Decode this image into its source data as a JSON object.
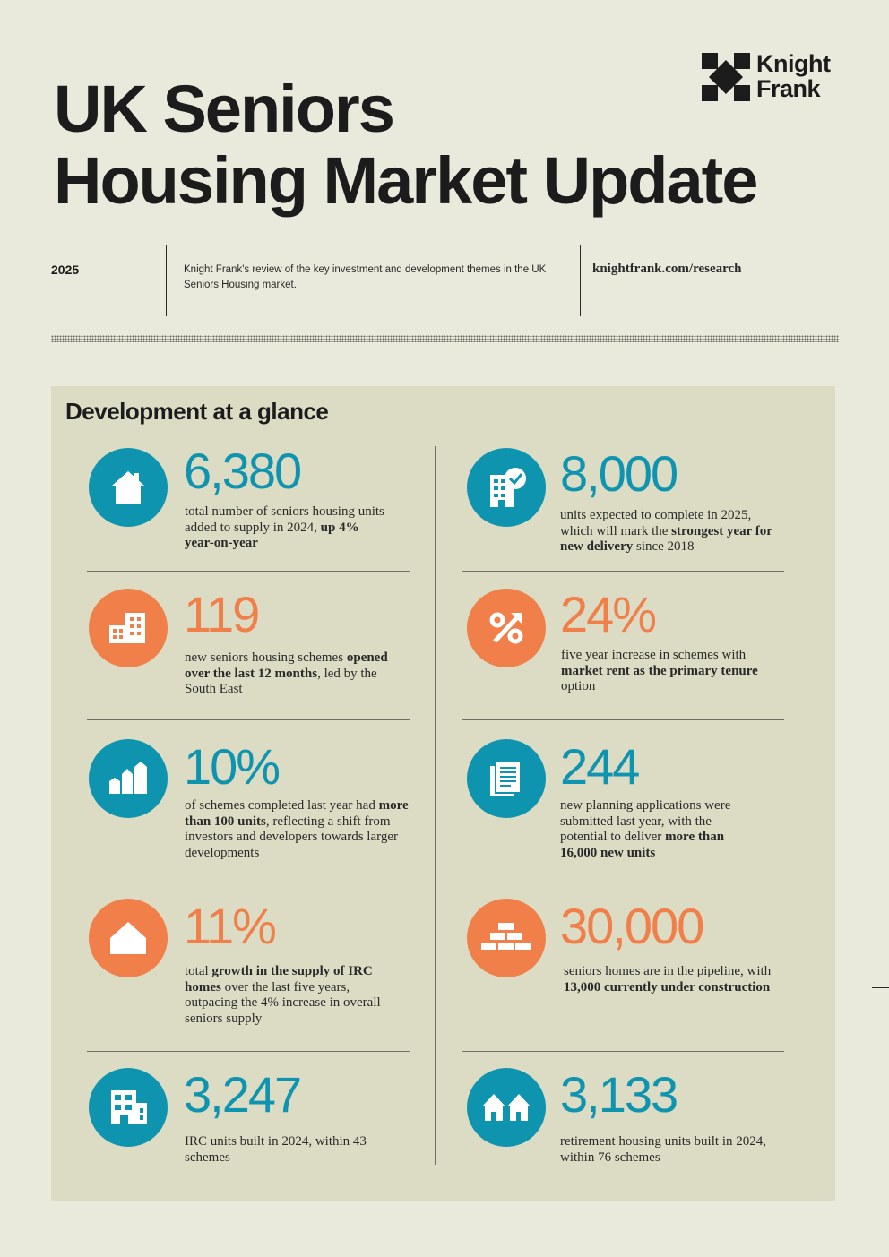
{
  "header": {
    "title_line1": "UK Seniors",
    "title_line2": "Housing Market Update",
    "logo_line1": "Knight",
    "logo_line2": "Frank",
    "year": "2025",
    "description": "Knight Frank's review of the key investment and development themes in the UK Seniors Housing market.",
    "url": "knightfrank.com/research"
  },
  "section": {
    "title": "Development at a glance"
  },
  "colors": {
    "blue": "#0f94b0",
    "orange": "#f07f4a",
    "panel": "#dcdcc4",
    "page": "#e9e9dc"
  },
  "stats": [
    {
      "id": "s1",
      "value": "6,380",
      "color": "blue",
      "icon": "house-icon",
      "text": [
        {
          "t": "total number of seniors housing units added to supply in 2024, "
        },
        {
          "t": "up 4% year-on-year",
          "b": true
        }
      ]
    },
    {
      "id": "s2",
      "value": "8,000",
      "color": "blue",
      "icon": "building-check-icon",
      "text": [
        {
          "t": "units expected to complete in 2025, which will mark the "
        },
        {
          "t": "strongest year for new delivery",
          "b": true
        },
        {
          "t": " since 2018"
        }
      ]
    },
    {
      "id": "s3",
      "value": "119",
      "color": "orange",
      "icon": "buildings-icon",
      "text": [
        {
          "t": "new seniors housing schemes "
        },
        {
          "t": "opened over the last 12 months",
          "b": true
        },
        {
          "t": ", led by the South East"
        }
      ]
    },
    {
      "id": "s4",
      "value": "24%",
      "color": "orange",
      "icon": "percent-icon",
      "text": [
        {
          "t": "five year increase in schemes with "
        },
        {
          "t": "market rent as the primary tenure",
          "b": true
        },
        {
          "t": " option"
        }
      ]
    },
    {
      "id": "s5",
      "value": "10%",
      "color": "blue",
      "icon": "growth-bars-icon",
      "text": [
        {
          "t": "of schemes completed last year had "
        },
        {
          "t": "more than 100 units",
          "b": true
        },
        {
          "t": ", reflecting a shift from investors and developers towards larger developments"
        }
      ]
    },
    {
      "id": "s6",
      "value": "244",
      "color": "blue",
      "icon": "documents-icon",
      "text": [
        {
          "t": "new planning applications were submitted last year, with the potential to deliver "
        },
        {
          "t": "more than 16,000 new units",
          "b": true
        }
      ]
    },
    {
      "id": "s7",
      "value": "11%",
      "color": "orange",
      "icon": "home-outline-icon",
      "text": [
        {
          "t": "total "
        },
        {
          "t": "growth in the supply of IRC homes",
          "b": true
        },
        {
          "t": " over the last five years, outpacing the 4% increase in overall seniors supply"
        }
      ]
    },
    {
      "id": "s8",
      "value": "30,000",
      "color": "orange",
      "icon": "bricks-icon",
      "text": [
        {
          "t": "seniors homes are in the pipeline, with "
        },
        {
          "t": "13,000 currently under construction",
          "b": true
        }
      ]
    },
    {
      "id": "s9",
      "value": "3,247",
      "color": "blue",
      "icon": "apartment-icon",
      "text": [
        {
          "t": "IRC units built in 2024, within 43 schemes"
        }
      ]
    },
    {
      "id": "s10",
      "value": "3,133",
      "color": "blue",
      "icon": "two-houses-icon",
      "text": [
        {
          "t": "retirement housing units built in 2024, within 76 schemes"
        }
      ]
    }
  ]
}
